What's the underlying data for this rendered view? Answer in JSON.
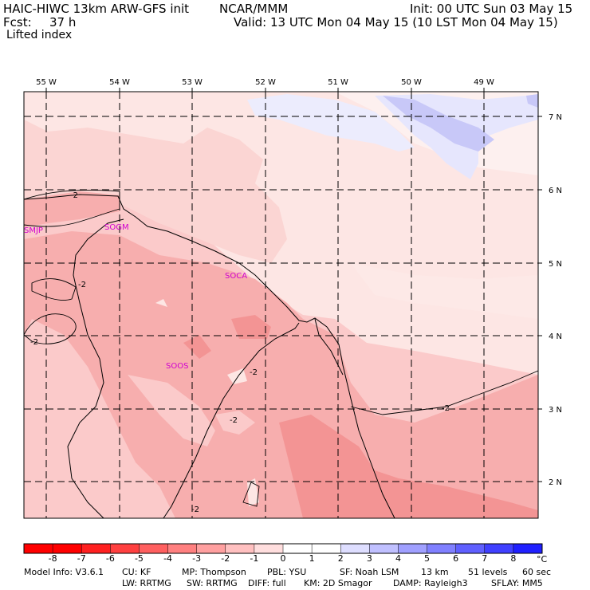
{
  "header": {
    "left_line1": "HAIC-HIWC 13km ARW-GFS init",
    "ncar": "NCAR/MMM",
    "init": "Init: 00 UTC Sun 03 May 15",
    "fcst": "Fcst:",
    "fcst_hours": "37 h",
    "valid": "Valid: 13 UTC Mon 04 May 15 (10 LST Mon 04 May 15)",
    "field": "Lifted index"
  },
  "map": {
    "lon_labels": [
      "55 W",
      "54 W",
      "53 W",
      "52 W",
      "51 W",
      "50 W",
      "49 W"
    ],
    "lat_labels": [
      "7 N",
      "6 N",
      "5 N",
      "4 N",
      "3 N",
      "2 N"
    ],
    "stations": [
      "SMJP",
      "SOGM",
      "SOCA",
      "SOOS"
    ],
    "contour_label": "-2",
    "colors": {
      "very_light_pink": "#fde6e4",
      "light_pink": "#fbcaca",
      "pink": "#f7aeae",
      "medium_red": "#f39494",
      "pale_blue": "#e6e6fd",
      "light_blue": "#c8c8f8"
    }
  },
  "colorbar": {
    "ticks": [
      "-8",
      "-7",
      "-6",
      "-5",
      "-4",
      "-3",
      "-2",
      "-1",
      "0",
      "1",
      "2",
      "3",
      "4",
      "5",
      "6",
      "7",
      "8"
    ],
    "unit": "°C",
    "colors": [
      "#ff0000",
      "#ff2020",
      "#ff4040",
      "#ff6060",
      "#ff8080",
      "#ffa0a0",
      "#ffc0c0",
      "#ffdede",
      "#ffffff",
      "#dedeff",
      "#c0c0ff",
      "#a0a0ff",
      "#8080ff",
      "#6060ff",
      "#4040ff",
      "#2020ff",
      "#0000ff"
    ]
  },
  "model_info": {
    "line1": [
      "Model Info: V3.6.1",
      "CU: KF",
      "MP: Thompson",
      "PBL: YSU",
      "SF: Noah LSM",
      "13 km",
      "51 levels",
      "60 sec"
    ],
    "line2": [
      "LW: RRTMG",
      "SW: RRTMG",
      "DIFF: full",
      "KM: 2D Smagor",
      "DAMP: Rayleigh3",
      "SFLAY: MM5"
    ]
  }
}
